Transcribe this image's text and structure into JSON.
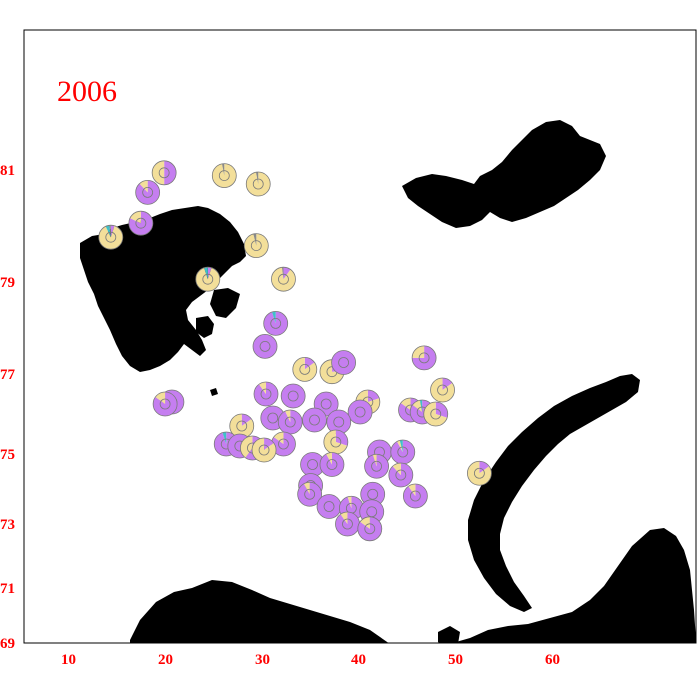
{
  "year_label": "2006",
  "colors": {
    "land": "#000000",
    "label": "#ff0000",
    "purple": "#c57ef0",
    "tan": "#f3df9a",
    "cyan": "#3fc1c9",
    "gray": "#8a8a8a",
    "pie_stroke": "#7a7a7a"
  },
  "axes": {
    "x_ticks": [
      "10",
      "20",
      "30",
      "40",
      "50",
      "60"
    ],
    "y_ticks": [
      "81",
      "79",
      "77",
      "75",
      "73",
      "71",
      "69"
    ]
  },
  "stations": [
    {
      "lon": 19.5,
      "lat": 80.95,
      "purple": 0.5,
      "tan": 0.5
    },
    {
      "lon": 25.7,
      "lat": 80.9,
      "purple": 0.0,
      "tan": 0.97,
      "gray": 0.03
    },
    {
      "lon": 29.2,
      "lat": 80.75,
      "purple": 0.0,
      "tan": 0.97,
      "gray": 0.03
    },
    {
      "lon": 17.8,
      "lat": 80.6,
      "purple": 0.88,
      "tan": 0.12
    },
    {
      "lon": 17.1,
      "lat": 80.05,
      "purple": 0.82,
      "tan": 0.18
    },
    {
      "lon": 14.0,
      "lat": 79.8,
      "purple": 0.05,
      "tan": 0.88,
      "cyan": 0.05,
      "gray": 0.02
    },
    {
      "lon": 29.0,
      "lat": 79.65,
      "purple": 0.0,
      "tan": 0.96,
      "gray": 0.04
    },
    {
      "lon": 24.0,
      "lat": 79.05,
      "purple": 0.05,
      "tan": 0.9,
      "cyan": 0.05
    },
    {
      "lon": 31.8,
      "lat": 79.05,
      "purple": 0.1,
      "tan": 0.88,
      "gray": 0.02
    },
    {
      "lon": 31.0,
      "lat": 78.1,
      "purple": 0.95,
      "cyan": 0.05
    },
    {
      "lon": 29.9,
      "lat": 77.6,
      "purple": 1.0
    },
    {
      "lon": 34.0,
      "lat": 77.1,
      "purple": 0.15,
      "tan": 0.85
    },
    {
      "lon": 36.8,
      "lat": 77.05,
      "purple": 0.25,
      "tan": 0.75
    },
    {
      "lon": 38.0,
      "lat": 77.25,
      "purple": 1.0
    },
    {
      "lon": 46.3,
      "lat": 77.35,
      "purple": 0.75,
      "tan": 0.25
    },
    {
      "lon": 48.2,
      "lat": 76.6,
      "purple": 0.15,
      "tan": 0.85
    },
    {
      "lon": 30.0,
      "lat": 76.5,
      "purple": 0.9,
      "tan": 0.1
    },
    {
      "lon": 32.8,
      "lat": 76.45,
      "purple": 1.0
    },
    {
      "lon": 20.3,
      "lat": 76.3,
      "purple": 1.0
    },
    {
      "lon": 19.6,
      "lat": 76.25,
      "purple": 0.85,
      "tan": 0.15
    },
    {
      "lon": 36.2,
      "lat": 76.25,
      "purple": 1.0
    },
    {
      "lon": 40.5,
      "lat": 76.3,
      "purple": 0.2,
      "tan": 0.8
    },
    {
      "lon": 44.9,
      "lat": 76.1,
      "purple": 0.85,
      "tan": 0.15
    },
    {
      "lon": 46.1,
      "lat": 76.05,
      "purple": 0.85,
      "tan": 0.12,
      "cyan": 0.03
    },
    {
      "lon": 47.5,
      "lat": 76.0,
      "purple": 0.3,
      "tan": 0.7
    },
    {
      "lon": 39.7,
      "lat": 76.05,
      "purple": 1.0
    },
    {
      "lon": 30.7,
      "lat": 75.9,
      "purple": 1.0
    },
    {
      "lon": 32.5,
      "lat": 75.8,
      "purple": 0.93,
      "tan": 0.07
    },
    {
      "lon": 35.0,
      "lat": 75.85,
      "purple": 1.0
    },
    {
      "lon": 37.5,
      "lat": 75.8,
      "purple": 1.0
    },
    {
      "lon": 27.5,
      "lat": 75.7,
      "purple": 0.15,
      "tan": 0.85
    },
    {
      "lon": 31.8,
      "lat": 75.25,
      "purple": 0.85,
      "tan": 0.15
    },
    {
      "lon": 37.2,
      "lat": 75.3,
      "purple": 0.3,
      "tan": 0.7
    },
    {
      "lon": 25.9,
      "lat": 75.25,
      "purple": 0.95,
      "cyan": 0.05
    },
    {
      "lon": 27.3,
      "lat": 75.2,
      "purple": 1.0
    },
    {
      "lon": 28.6,
      "lat": 75.15,
      "purple": 0.6,
      "tan": 0.4
    },
    {
      "lon": 29.8,
      "lat": 75.1,
      "purple": 0.15,
      "tan": 0.85
    },
    {
      "lon": 41.7,
      "lat": 75.05,
      "purple": 1.0
    },
    {
      "lon": 44.1,
      "lat": 75.05,
      "purple": 0.92,
      "cyan": 0.04,
      "tan": 0.04
    },
    {
      "lon": 34.8,
      "lat": 74.7,
      "purple": 1.0
    },
    {
      "lon": 36.8,
      "lat": 74.7,
      "purple": 0.92,
      "tan": 0.08
    },
    {
      "lon": 41.4,
      "lat": 74.65,
      "purple": 0.95,
      "tan": 0.05
    },
    {
      "lon": 52.0,
      "lat": 74.45,
      "purple": 0.15,
      "tan": 0.85
    },
    {
      "lon": 43.9,
      "lat": 74.4,
      "purple": 0.88,
      "tan": 0.12
    },
    {
      "lon": 34.6,
      "lat": 74.1,
      "purple": 1.0
    },
    {
      "lon": 34.5,
      "lat": 73.85,
      "purple": 0.92,
      "tan": 0.08
    },
    {
      "lon": 41.0,
      "lat": 73.85,
      "purple": 1.0
    },
    {
      "lon": 45.4,
      "lat": 73.8,
      "purple": 0.9,
      "tan": 0.1
    },
    {
      "lon": 36.5,
      "lat": 73.5,
      "purple": 1.0
    },
    {
      "lon": 38.8,
      "lat": 73.45,
      "purple": 0.95,
      "tan": 0.05
    },
    {
      "lon": 40.9,
      "lat": 73.35,
      "purple": 1.0
    },
    {
      "lon": 38.4,
      "lat": 73.0,
      "purple": 0.9,
      "tan": 0.1
    },
    {
      "lon": 40.7,
      "lat": 72.85,
      "purple": 0.85,
      "tan": 0.15
    }
  ]
}
